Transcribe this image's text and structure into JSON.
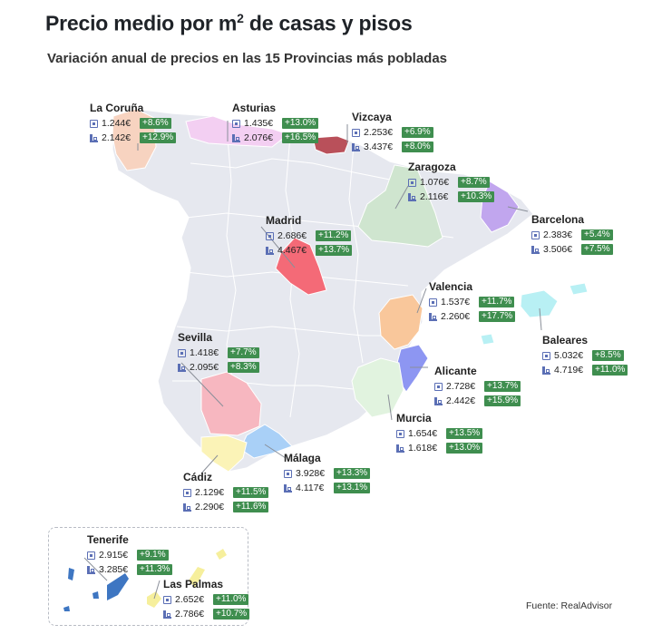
{
  "title": "Precio medio por m",
  "title_sup": "2",
  "title_rest": " de casas y pisos",
  "subtitle": "Variación anual de precios en las 15 Provincias más pobladas",
  "source": "Fuente: RealAdvisor",
  "colors": {
    "base": "#e6e8ef",
    "border": "#ffffff",
    "positive_badge": "#3f8e4f",
    "icon": "#5b6fb5",
    "la_coruna": "#f7d3c0",
    "asturias": "#f3cff2",
    "vizcaya": "#b9505a",
    "zaragoza": "#cfe5cf",
    "barcelona": "#c1a6ee",
    "madrid": "#f46a77",
    "valencia": "#f9c79b",
    "baleares": "#b8f0f4",
    "sevilla": "#f7b7c0",
    "alicante": "#8d96f2",
    "murcia": "#e1f3df",
    "cadiz": "#fbf3b7",
    "malaga": "#a9d0f7",
    "tenerife": "#3e76c2",
    "las_palmas": "#f6ef9c"
  },
  "legend_icons": {
    "casa": "house-icon",
    "piso": "building-icon"
  },
  "provinces": {
    "la_coruna": {
      "name": "La Coruña",
      "casa_price": "1.244€",
      "casa_change": "+8.6%",
      "piso_price": "2.142€",
      "piso_change": "+12.9%"
    },
    "asturias": {
      "name": "Asturias",
      "casa_price": "1.435€",
      "casa_change": "+13.0%",
      "piso_price": "2.076€",
      "piso_change": "+16.5%"
    },
    "vizcaya": {
      "name": "Vizcaya",
      "casa_price": "2.253€",
      "casa_change": "+6.9%",
      "piso_price": "3.437€",
      "piso_change": "+8.0%"
    },
    "zaragoza": {
      "name": "Zaragoza",
      "casa_price": "1.076€",
      "casa_change": "+8.7%",
      "piso_price": "2.116€",
      "piso_change": "+10.3%"
    },
    "madrid": {
      "name": "Madrid",
      "casa_price": "2.686€",
      "casa_change": "+11.2%",
      "piso_price": "4.467€",
      "piso_change": "+13.7%"
    },
    "barcelona": {
      "name": "Barcelona",
      "casa_price": "2.383€",
      "casa_change": "+5.4%",
      "piso_price": "3.506€",
      "piso_change": "+7.5%"
    },
    "valencia": {
      "name": "Valencia",
      "casa_price": "1.537€",
      "casa_change": "+11.7%",
      "piso_price": "2.260€",
      "piso_change": "+17.7%"
    },
    "baleares": {
      "name": "Baleares",
      "casa_price": "5.032€",
      "casa_change": "+8.5%",
      "piso_price": "4.719€",
      "piso_change": "+11.0%"
    },
    "sevilla": {
      "name": "Sevilla",
      "casa_price": "1.418€",
      "casa_change": "+7.7%",
      "piso_price": "2.095€",
      "piso_change": "+8.3%"
    },
    "alicante": {
      "name": "Alicante",
      "casa_price": "2.728€",
      "casa_change": "+13.7%",
      "piso_price": "2.442€",
      "piso_change": "+15.9%"
    },
    "murcia": {
      "name": "Murcia",
      "casa_price": "1.654€",
      "casa_change": "+13.5%",
      "piso_price": "1.618€",
      "piso_change": "+13.0%"
    },
    "malaga": {
      "name": "Málaga",
      "casa_price": "3.928€",
      "casa_change": "+13.3%",
      "piso_price": "4.117€",
      "piso_change": "+13.1%"
    },
    "cadiz": {
      "name": "Cádiz",
      "casa_price": "2.129€",
      "casa_change": "+11.5%",
      "piso_price": "2.290€",
      "piso_change": "+11.6%"
    },
    "tenerife": {
      "name": "Tenerife",
      "casa_price": "2.915€",
      "casa_change": "+9.1%",
      "piso_price": "3.285€",
      "piso_change": "+11.3%"
    },
    "las_palmas": {
      "name": "Las Palmas",
      "casa_price": "2.652€",
      "casa_change": "+11.0%",
      "piso_price": "2.786€",
      "piso_change": "+10.7%"
    }
  }
}
